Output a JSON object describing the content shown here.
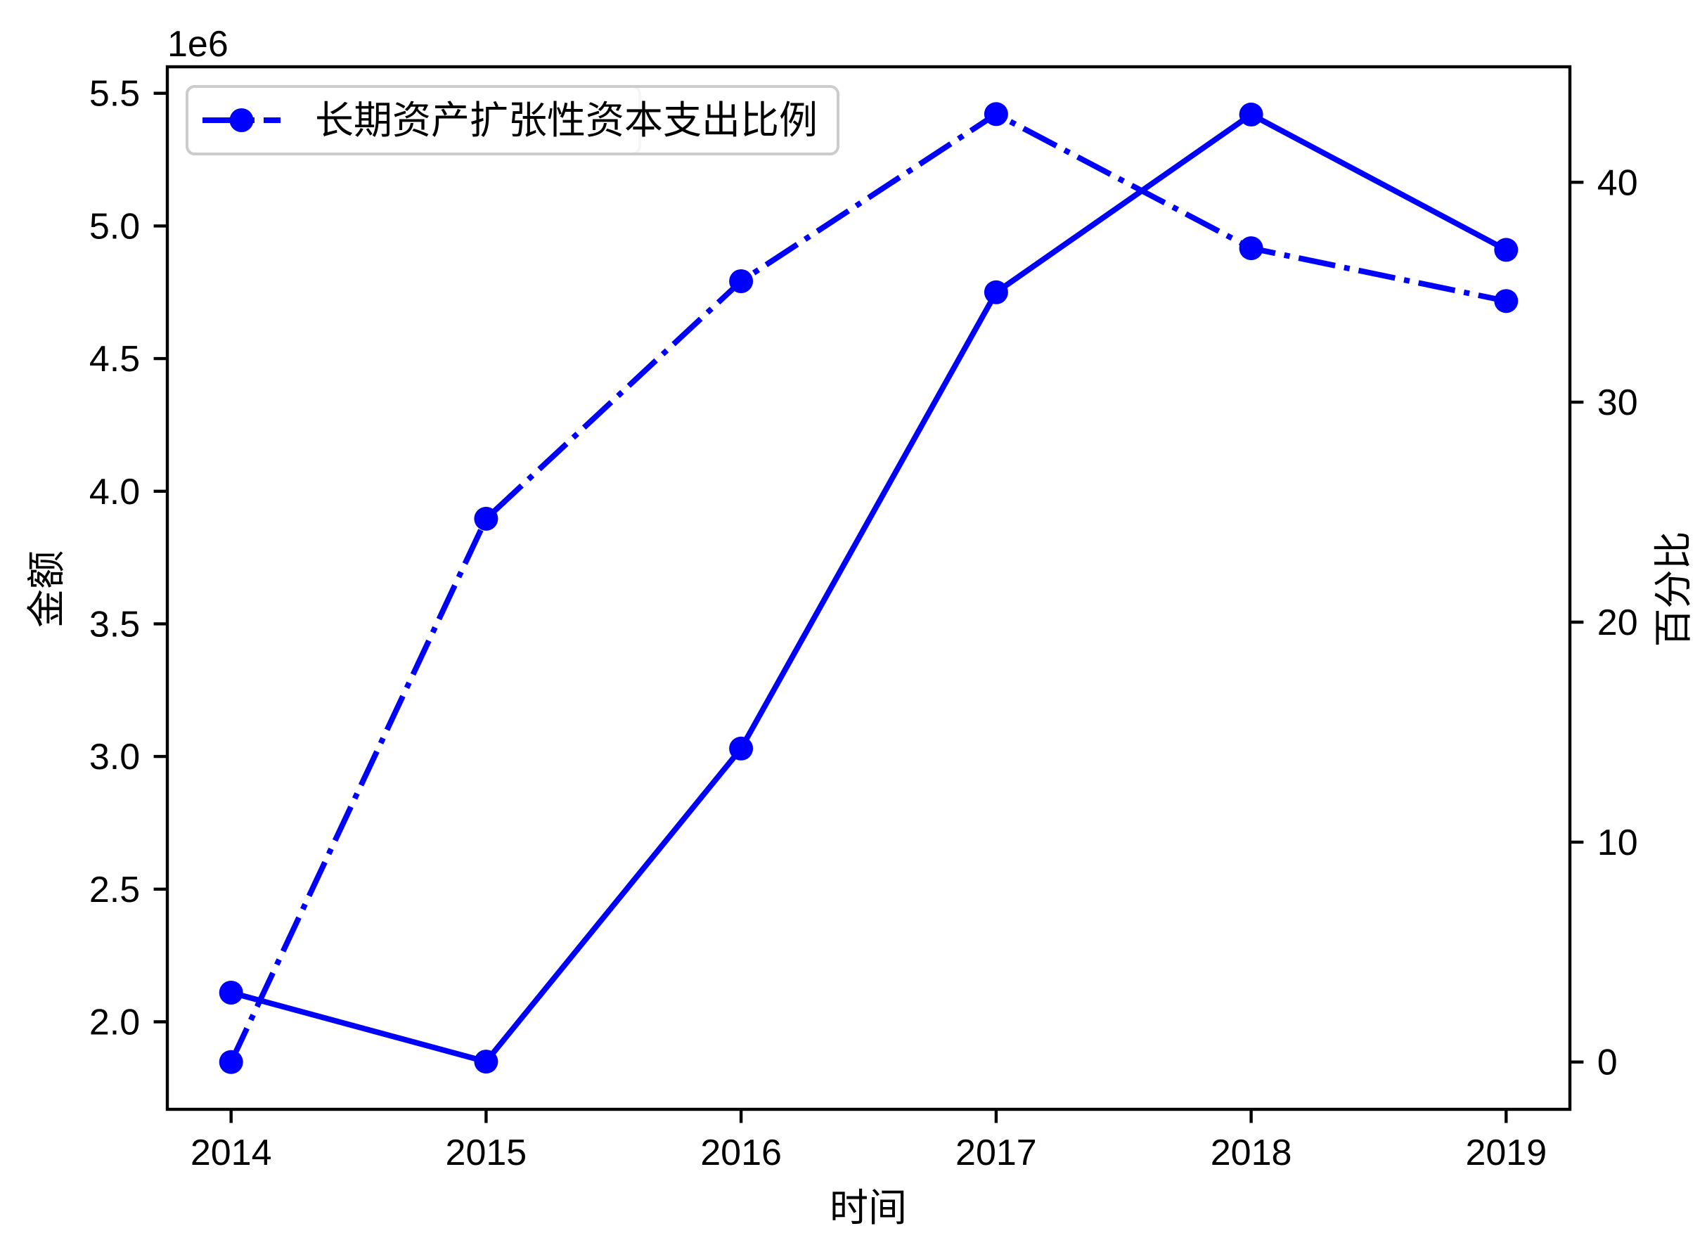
{
  "chart_data": {
    "type": "line",
    "grid": false,
    "x": [
      2014,
      2015,
      2016,
      2017,
      2018,
      2019
    ],
    "xlim": [
      2013.75,
      2019.25
    ],
    "x_tick_labels": [
      "2014",
      "2015",
      "2016",
      "2017",
      "2018",
      "2019"
    ],
    "xlabel": "时间",
    "y_left": {
      "label": "金额",
      "offset_text": "1e6",
      "ylim": [
        1670000,
        5600000
      ],
      "ticks": [
        2000000,
        2500000,
        3000000,
        3500000,
        4000000,
        4500000,
        5000000,
        5500000
      ],
      "tick_labels": [
        "2.0",
        "2.5",
        "3.0",
        "3.5",
        "4.0",
        "4.5",
        "5.0",
        "5.5"
      ]
    },
    "y_right": {
      "label": "百分比",
      "ylim": [
        -2.15,
        45.25
      ],
      "ticks": [
        0,
        10,
        20,
        30,
        40
      ],
      "tick_labels": [
        "0",
        "10",
        "20",
        "30",
        "40"
      ]
    },
    "series": [
      {
        "axis": "left",
        "line_style": "solid",
        "marker": "circle",
        "color": "#0000ff",
        "values": [
          2110000,
          1850000,
          3030000,
          4750000,
          5420000,
          4910000
        ]
      },
      {
        "name": "长期资产扩张性资本支出比例",
        "axis": "right",
        "line_style": "dash-dot",
        "marker": "circle",
        "color": "#0000ff",
        "values": [
          0,
          24.7,
          35.5,
          43.1,
          37.0,
          34.6
        ]
      }
    ],
    "legend": {
      "placement": "upper left"
    },
    "colors": {
      "frame": "#000000",
      "legend_edge": "#cccccc",
      "background": "#ffffff"
    }
  }
}
